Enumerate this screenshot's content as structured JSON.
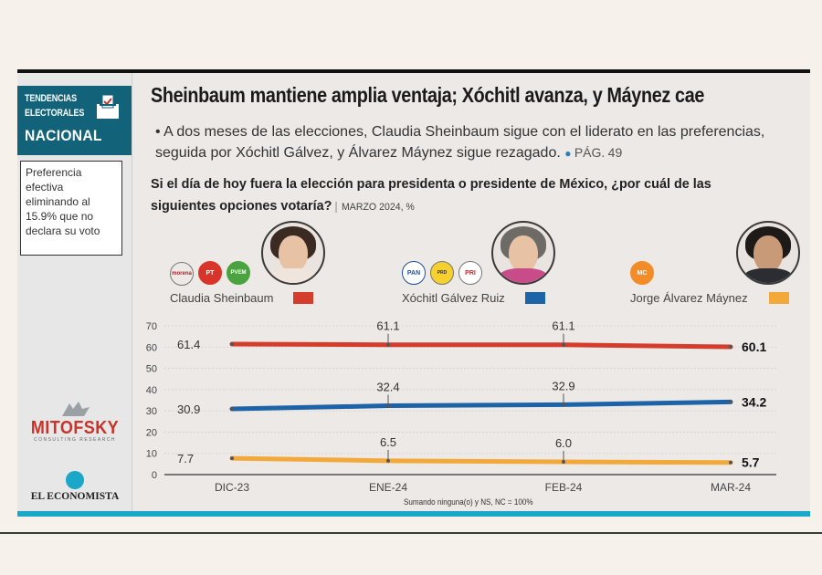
{
  "header": {
    "badge_line1": "TENDENCIAS",
    "badge_line2": "ELECTORALES",
    "badge_line3": "NACIONAL",
    "headline": "Sheinbaum mantiene amplia ventaja; Xóchitl avanza, y Máynez cae",
    "summary": "A dos meses de las elecciones, Claudia Sheinbaum sigue con el liderato en las preferencias, seguida por Xóchitl Gálvez, y Álvarez Máynez sigue rezagado.",
    "page_ref_label": "PÁG.",
    "page_ref_num": "49",
    "question": "Si el día de hoy fuera la elección para presidenta o presidente de México, ¿por cuál de las siguientes opciones votaría?",
    "question_date": "MARZO 2024, %"
  },
  "sidebar": {
    "note": "Preferencia efectiva eliminando al 15.9% que no declara su voto",
    "mitofsky": "MITOFSKY",
    "mitofsky_sub": "CONSULTING RESEARCH",
    "economista": "EL ECONOMISTA"
  },
  "candidates": [
    {
      "name": "Claudia Sheinbaum",
      "color": "#d43c2c",
      "parties": [
        "morena",
        "PT",
        "PVEM"
      ]
    },
    {
      "name": "Xóchitl Gálvez Ruiz",
      "color": "#1d63a8",
      "parties": [
        "PAN",
        "PRD",
        "PRI"
      ]
    },
    {
      "name": "Jorge Álvarez Máynez",
      "color": "#f3a93a",
      "parties": [
        "MC"
      ]
    }
  ],
  "chart_data": {
    "type": "line",
    "categories": [
      "DIC-23",
      "ENE-24",
      "FEB-24",
      "MAR-24"
    ],
    "series": [
      {
        "name": "Claudia Sheinbaum",
        "values": [
          61.4,
          61.1,
          61.1,
          60.1
        ],
        "color": "#d43c2c"
      },
      {
        "name": "Xóchitl Gálvez Ruiz",
        "values": [
          30.9,
          32.4,
          32.9,
          34.2
        ],
        "color": "#1d63a8"
      },
      {
        "name": "Jorge Álvarez Máynez",
        "values": [
          7.7,
          6.5,
          6.0,
          5.7
        ],
        "color": "#f3a93a"
      }
    ],
    "labels": [
      [
        "61.4",
        "61.1",
        "61.1",
        "60.1"
      ],
      [
        "30.9",
        "32.4",
        "32.9",
        "34.2"
      ],
      [
        "7.7",
        "6.5",
        "6.0",
        "5.7"
      ]
    ],
    "ylim": [
      0,
      70
    ],
    "yticks": [
      0,
      10,
      20,
      30,
      40,
      50,
      60,
      70
    ],
    "grid": true,
    "footnote": "Sumando ninguna(o) y NS, NC = 100%"
  }
}
